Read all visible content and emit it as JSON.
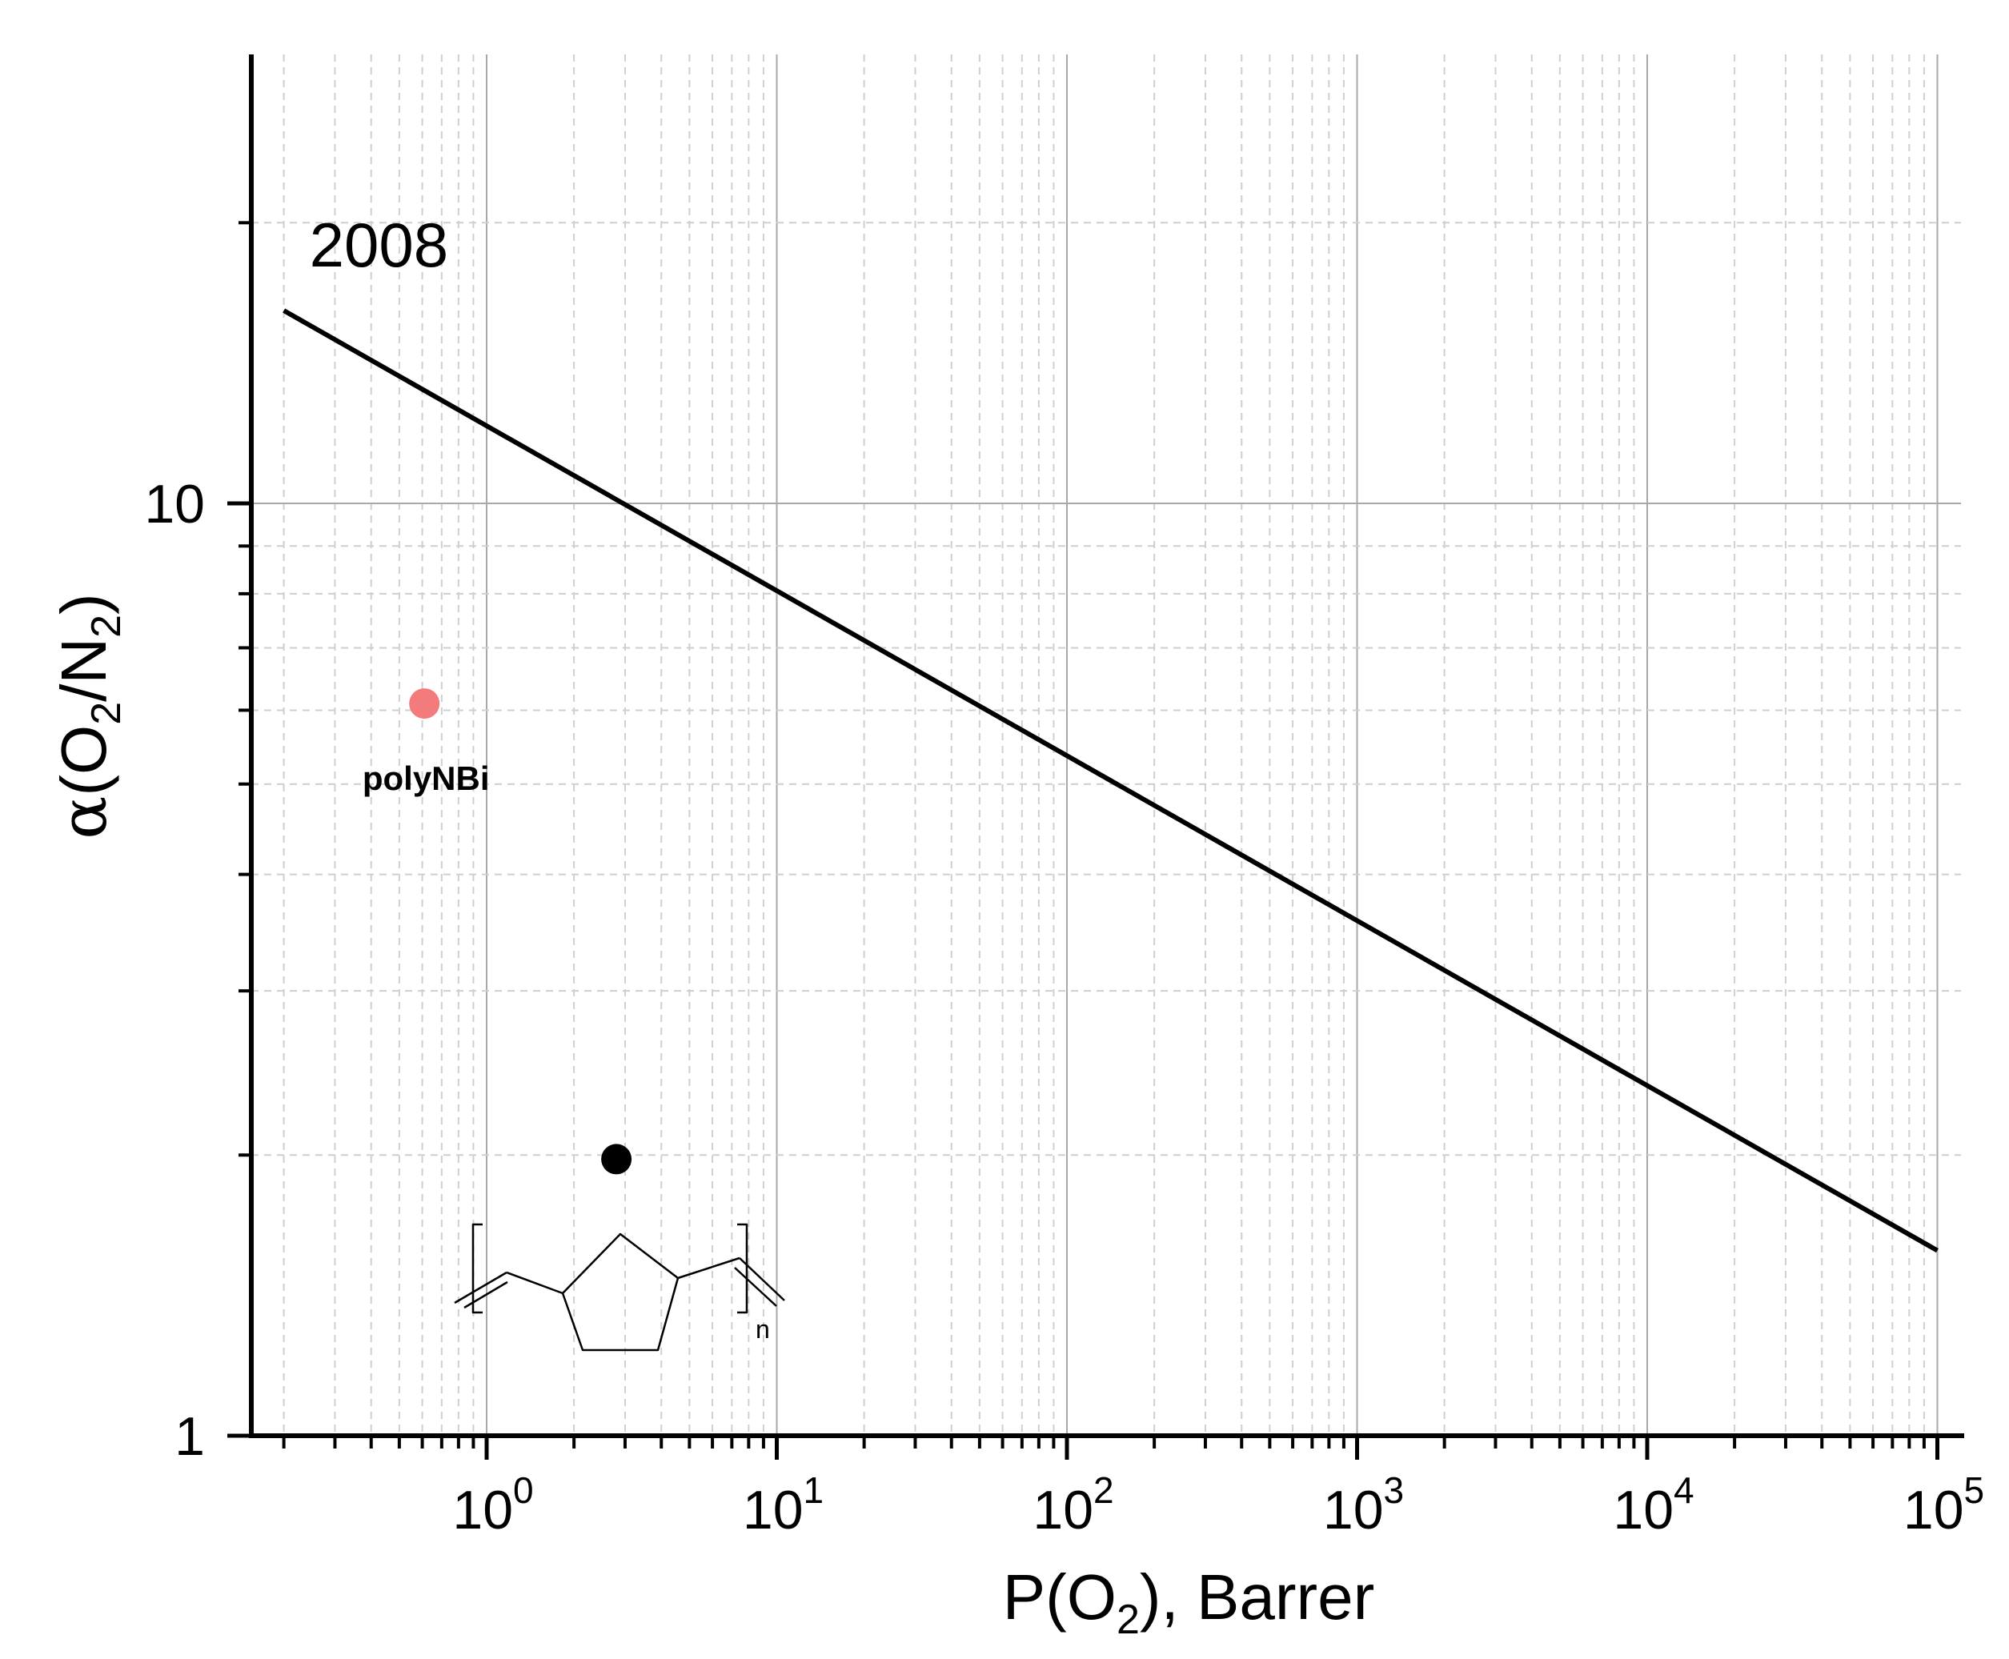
{
  "chart_data": {
    "type": "scatter",
    "xlabel": {
      "base": "P(O",
      "sub": "2",
      "tail": "), Barrer"
    },
    "ylabel": {
      "alpha": "α",
      "open": "(O",
      "sub1": "2",
      "slash": "/N",
      "sub2": "2",
      "close": ")"
    },
    "x_scale": "log",
    "y_scale": "log",
    "xlim": [
      0.13,
      100000
    ],
    "ylim": [
      1,
      26
    ],
    "grid": true,
    "x_ticks": [
      {
        "base": "10",
        "exp": "0",
        "value": 1
      },
      {
        "base": "10",
        "exp": "1",
        "value": 10
      },
      {
        "base": "10",
        "exp": "2",
        "value": 100
      },
      {
        "base": "10",
        "exp": "3",
        "value": 1000
      },
      {
        "base": "10",
        "exp": "4",
        "value": 10000
      },
      {
        "base": "10",
        "exp": "5",
        "value": 100000
      }
    ],
    "y_ticks": [
      {
        "label": "1",
        "value": 1
      },
      {
        "label": "10",
        "value": 10
      }
    ],
    "upper_bound": {
      "label": "2008",
      "points": [
        [
          0.2,
          16.1
        ],
        [
          100000,
          1.58
        ]
      ],
      "color": "#000000"
    },
    "points": [
      {
        "label": "polyNBi",
        "x": 0.61,
        "y": 6.1,
        "color": "#f37b7b"
      },
      {
        "label": "",
        "x": 2.8,
        "y": 1.98,
        "color": "#000000"
      }
    ],
    "structure": {
      "subscript": "n"
    }
  }
}
